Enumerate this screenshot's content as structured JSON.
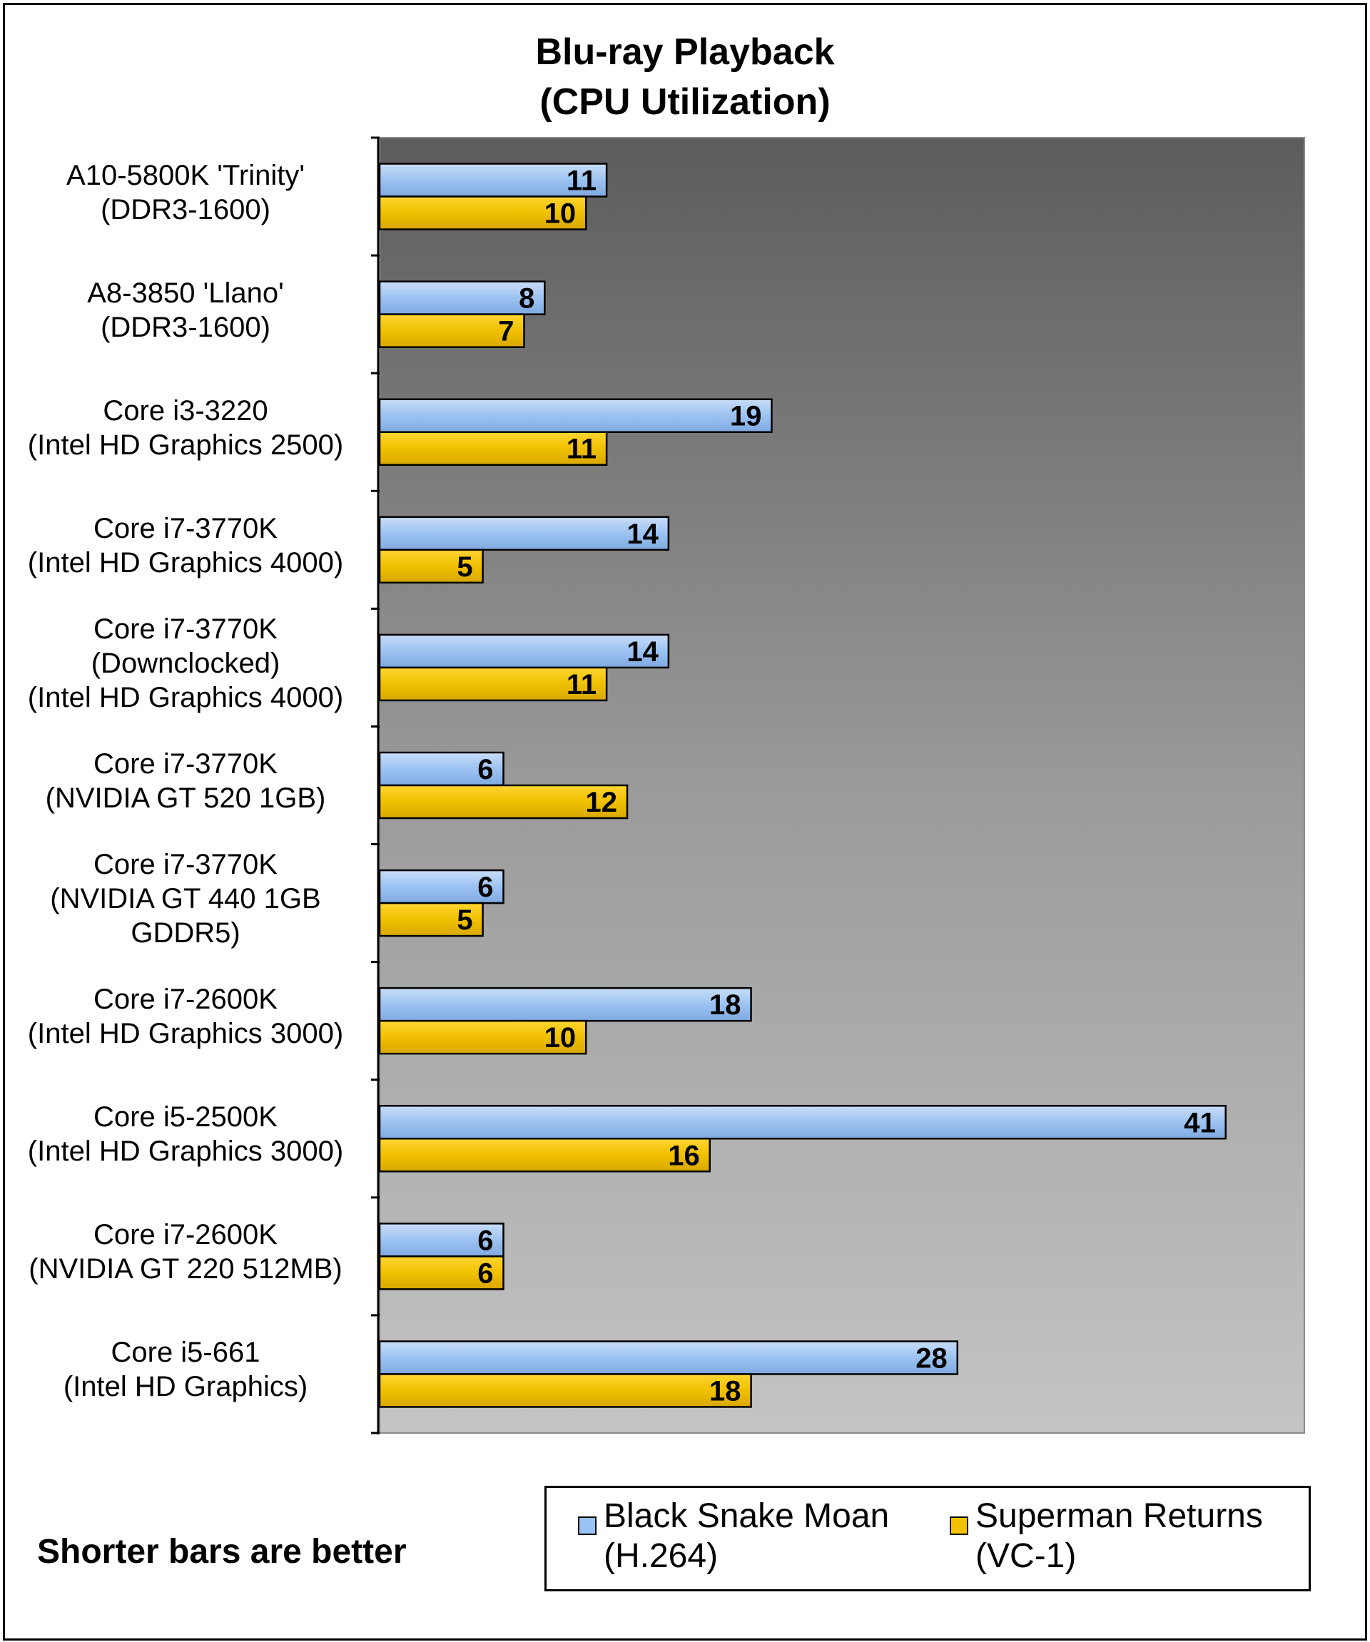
{
  "chart_data": {
    "type": "bar",
    "orientation": "horizontal",
    "title": [
      "Blu-ray  Playback",
      "(CPU Utilization)"
    ],
    "categories": [
      [
        "A10-5800K 'Trinity'",
        "(DDR3-1600)"
      ],
      [
        "A8-3850 'Llano'",
        "(DDR3-1600)"
      ],
      [
        "Core i3-3220",
        "(Intel HD Graphics 2500)"
      ],
      [
        "Core i7-3770K",
        "(Intel HD Graphics 4000)"
      ],
      [
        "Core i7-3770K",
        "(Downclocked)",
        "(Intel HD Graphics 4000)"
      ],
      [
        "Core i7-3770K",
        "(NVIDIA GT 520 1GB)"
      ],
      [
        "Core i7-3770K",
        "(NVIDIA GT 440 1GB",
        "GDDR5)"
      ],
      [
        "Core i7-2600K",
        "(Intel HD Graphics 3000)"
      ],
      [
        "Core i5-2500K",
        "(Intel HD Graphics 3000)"
      ],
      [
        "Core i7-2600K",
        "(NVIDIA GT 220 512MB)"
      ],
      [
        "Core i5-661",
        "(Intel HD Graphics)"
      ]
    ],
    "series": [
      {
        "name": [
          "Black Snake Moan",
          "(H.264)"
        ],
        "color": "#99c2f5",
        "values": [
          11,
          8,
          19,
          14,
          14,
          6,
          6,
          18,
          41,
          6,
          28
        ]
      },
      {
        "name": [
          "Superman Returns",
          "(VC-1)"
        ],
        "color": "#f2c200",
        "values": [
          10,
          7,
          11,
          5,
          11,
          12,
          5,
          10,
          16,
          6,
          18
        ]
      }
    ],
    "xlim": [
      0,
      45
    ],
    "grid": false,
    "data_labels": true,
    "legend_position": "bottom-right",
    "background": "gradient dark-to-light gray"
  },
  "footnote": "Shorter bars are better"
}
